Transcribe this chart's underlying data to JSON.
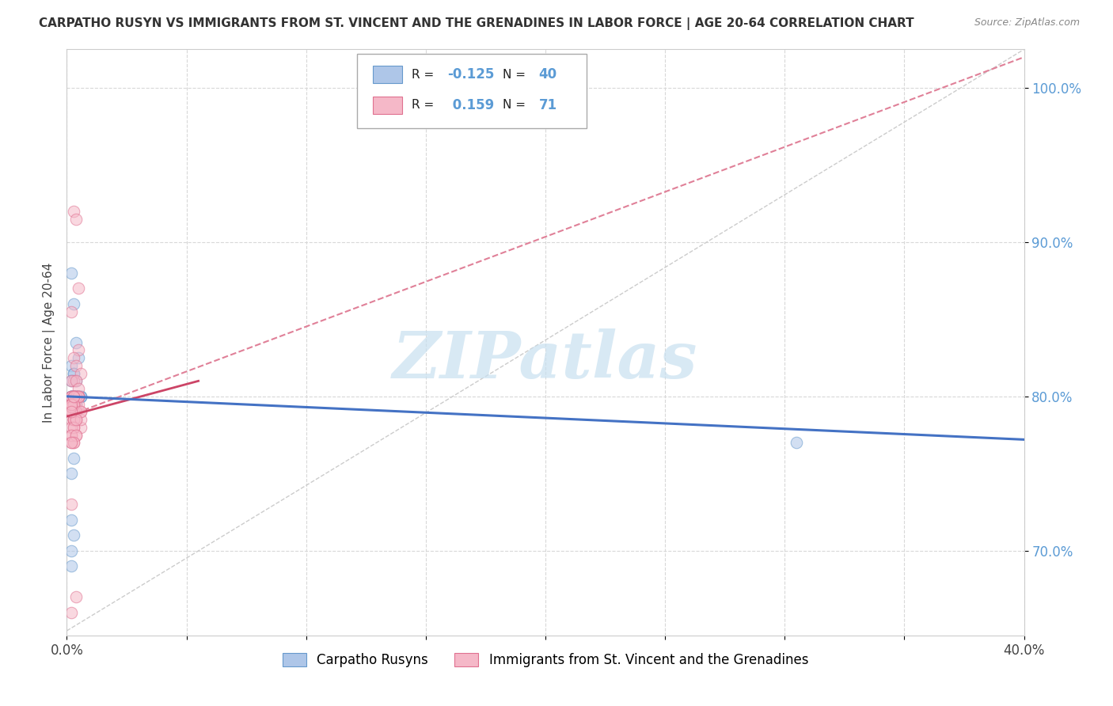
{
  "title": "CARPATHO RUSYN VS IMMIGRANTS FROM ST. VINCENT AND THE GRENADINES IN LABOR FORCE | AGE 20-64 CORRELATION CHART",
  "source": "Source: ZipAtlas.com",
  "ylabel": "In Labor Force | Age 20-64",
  "xlim": [
    0.0,
    0.4
  ],
  "ylim": [
    0.645,
    1.025
  ],
  "xticks": [
    0.0,
    0.05,
    0.1,
    0.15,
    0.2,
    0.25,
    0.3,
    0.35,
    0.4
  ],
  "xtick_labels": [
    "0.0%",
    "",
    "",
    "",
    "",
    "",
    "",
    "",
    "40.0%"
  ],
  "yticks": [
    0.7,
    0.8,
    0.9,
    1.0
  ],
  "ytick_labels": [
    "70.0%",
    "80.0%",
    "90.0%",
    "100.0%"
  ],
  "blue_scatter": {
    "color": "#aec6e8",
    "edge_color": "#6699cc",
    "x": [
      0.002,
      0.003,
      0.004,
      0.002,
      0.005,
      0.003,
      0.004,
      0.006,
      0.003,
      0.002,
      0.004,
      0.005,
      0.003,
      0.002,
      0.004,
      0.003,
      0.002,
      0.005,
      0.004,
      0.002,
      0.003,
      0.004,
      0.002,
      0.003,
      0.006,
      0.003,
      0.002,
      0.004,
      0.003,
      0.002,
      0.005,
      0.003,
      0.002,
      0.006,
      0.004,
      0.003,
      0.002,
      0.002,
      0.002,
      0.305
    ],
    "y": [
      0.88,
      0.86,
      0.835,
      0.82,
      0.825,
      0.815,
      0.81,
      0.8,
      0.8,
      0.795,
      0.8,
      0.8,
      0.815,
      0.81,
      0.8,
      0.8,
      0.8,
      0.8,
      0.795,
      0.8,
      0.795,
      0.8,
      0.72,
      0.71,
      0.8,
      0.76,
      0.75,
      0.8,
      0.8,
      0.8,
      0.8,
      0.8,
      0.795,
      0.8,
      0.8,
      0.8,
      0.8,
      0.69,
      0.7,
      0.77
    ]
  },
  "pink_scatter": {
    "color": "#f5b8c8",
    "edge_color": "#e07090",
    "x": [
      0.003,
      0.004,
      0.005,
      0.002,
      0.005,
      0.003,
      0.004,
      0.006,
      0.003,
      0.002,
      0.004,
      0.005,
      0.003,
      0.002,
      0.004,
      0.003,
      0.002,
      0.005,
      0.004,
      0.002,
      0.003,
      0.004,
      0.002,
      0.003,
      0.006,
      0.003,
      0.002,
      0.004,
      0.003,
      0.002,
      0.005,
      0.003,
      0.002,
      0.006,
      0.004,
      0.003,
      0.002,
      0.002,
      0.004,
      0.003,
      0.002,
      0.005,
      0.003,
      0.002,
      0.004,
      0.003,
      0.002,
      0.005,
      0.004,
      0.002,
      0.003,
      0.004,
      0.002,
      0.003,
      0.006,
      0.003,
      0.002,
      0.004,
      0.003,
      0.002,
      0.005,
      0.003,
      0.002,
      0.006,
      0.004,
      0.003,
      0.002,
      0.002,
      0.004,
      0.003,
      0.002
    ],
    "y": [
      0.92,
      0.915,
      0.87,
      0.855,
      0.83,
      0.825,
      0.82,
      0.815,
      0.81,
      0.81,
      0.81,
      0.805,
      0.8,
      0.8,
      0.8,
      0.8,
      0.8,
      0.8,
      0.795,
      0.795,
      0.795,
      0.79,
      0.785,
      0.785,
      0.78,
      0.78,
      0.775,
      0.775,
      0.77,
      0.77,
      0.8,
      0.8,
      0.795,
      0.79,
      0.785,
      0.785,
      0.8,
      0.73,
      0.8,
      0.795,
      0.795,
      0.795,
      0.79,
      0.79,
      0.785,
      0.785,
      0.78,
      0.8,
      0.8,
      0.795,
      0.795,
      0.79,
      0.79,
      0.785,
      0.785,
      0.78,
      0.775,
      0.775,
      0.77,
      0.77,
      0.8,
      0.795,
      0.793,
      0.79,
      0.785,
      0.8,
      0.795,
      0.79,
      0.67,
      0.8,
      0.66
    ]
  },
  "blue_trend": {
    "x": [
      0.0,
      0.4
    ],
    "y": [
      0.8,
      0.772
    ],
    "color": "#4472c4",
    "linewidth": 2.2
  },
  "pink_trend_dashed": {
    "x": [
      0.0,
      0.4
    ],
    "y": [
      0.787,
      1.02
    ],
    "color": "#e08098",
    "linewidth": 1.5,
    "linestyle": "--"
  },
  "pink_trend_solid": {
    "x": [
      0.0,
      0.055
    ],
    "y": [
      0.787,
      0.81
    ],
    "color": "#cc4466",
    "linewidth": 2.0,
    "linestyle": "-"
  },
  "gray_trend": {
    "x": [
      0.0,
      0.4
    ],
    "y": [
      0.648,
      1.025
    ],
    "color": "#cccccc",
    "linewidth": 1.0,
    "linestyle": "--"
  },
  "watermark_text": "ZIPatlas",
  "watermark_color": "#c8e0f0",
  "background_color": "#ffffff",
  "grid_color": "#d8d8d8",
  "scatter_size": 110,
  "scatter_alpha": 0.55,
  "series1_label": "Carpatho Rusyns",
  "series2_label": "Immigrants from St. Vincent and the Grenadines",
  "legend_r1": "-0.125",
  "legend_n1": "40",
  "legend_r2": "0.159",
  "legend_n2": "71",
  "ytick_color": "#5b9bd5",
  "title_fontsize": 11,
  "source_fontsize": 9
}
